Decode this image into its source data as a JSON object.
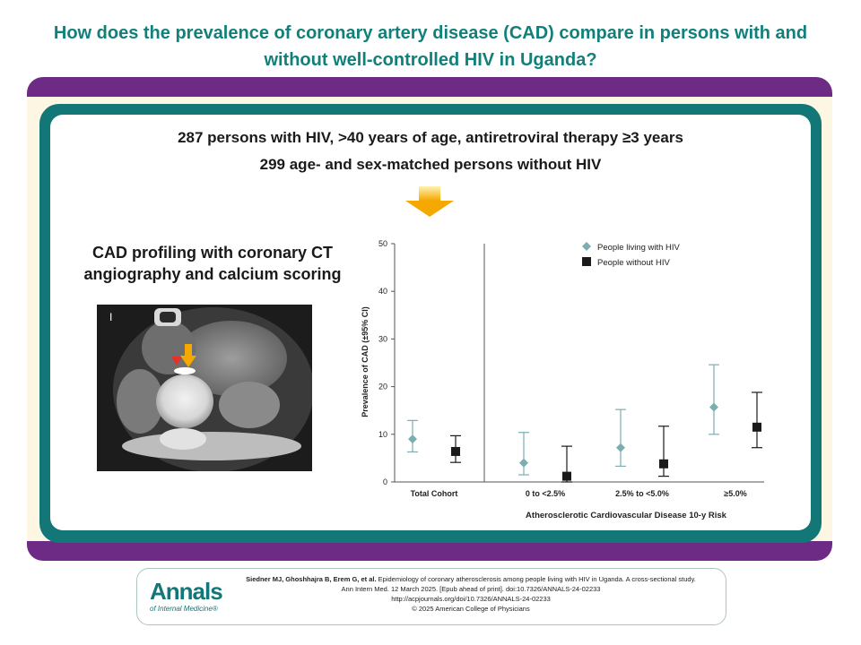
{
  "header": {
    "title_line1": "How does the prevalence of coronary artery disease (CAD) compare in persons with and",
    "title_line2": "without well-controlled HIV in Uganda?"
  },
  "study": {
    "line1": "287 persons with HIV, >40 years of age, antiretroviral therapy ≥3 years",
    "line2": "299 age- and sex-matched persons without HIV"
  },
  "method": {
    "line1": "CAD profiling with coronary CT",
    "line2": "angiography and calcium scoring"
  },
  "image": {
    "marker": "I"
  },
  "colors": {
    "hiv": "#7aaeb0",
    "nohiv": "#1a1a1a",
    "title": "#12807a",
    "band": "#6e2b86",
    "frame": "#137777"
  },
  "chart_data": {
    "type": "scatter",
    "ylabel": "Prevalence of CAD (±95% CI)",
    "xlabel": "Atherosclerotic Cardiovascular Disease 10-y Risk",
    "ylim": [
      0,
      50
    ],
    "yticks": [
      "0",
      "10",
      "20",
      "30",
      "40",
      "50"
    ],
    "categories": [
      "Total Cohort",
      "0 to <2.5%",
      "2.5% to <5.0%",
      "≥5.0%"
    ],
    "legend_position": "top-right",
    "series": [
      {
        "name": "People living with HIV",
        "marker": "diamond",
        "values": [
          9.0,
          4.0,
          7.2,
          15.7
        ],
        "lower": [
          6.3,
          1.5,
          3.3,
          10.0
        ],
        "upper": [
          12.9,
          10.4,
          15.2,
          24.6
        ]
      },
      {
        "name": "People without HIV",
        "marker": "square",
        "values": [
          6.4,
          1.2,
          3.8,
          11.5
        ],
        "lower": [
          4.1,
          0.0,
          1.2,
          7.2
        ],
        "upper": [
          9.7,
          7.5,
          11.7,
          18.8
        ]
      }
    ]
  },
  "citation": {
    "authors": "Siedner MJ, Ghoshhajra B, Erem G, et al.",
    "text": " Epidemiology of coronary atherosclerosis among people living with HIV in Uganda. A cross-sectional study.",
    "line2": "Ann Intern Med. 12 March 2025. [Epub ahead of print]. doi:10.7326/ANNALS-24-02233",
    "line3": "http://acpjournals.org/doi/10.7326/ANNALS-24-02233",
    "line4": "© 2025 American College of Physicians"
  },
  "logo": {
    "name": "Annals",
    "sub": "of Internal Medicine®"
  }
}
